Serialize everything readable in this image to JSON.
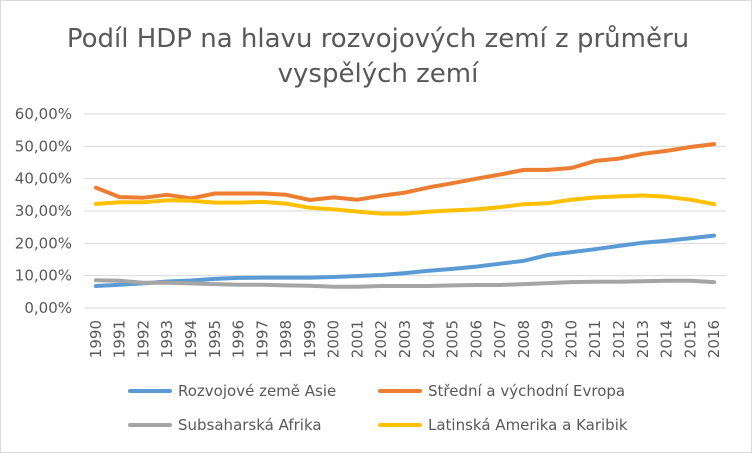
{
  "chart_data": {
    "type": "line",
    "title": "Podíl HDP na hlavu rozvojových zemí z průměru vyspělých zemí",
    "title_lines": [
      "Podíl HDP na hlavu rozvojových zemí z průměru",
      "vyspělých zemí"
    ],
    "xlabel": "",
    "ylabel": "",
    "ylim": [
      0,
      60
    ],
    "y_ticks": [
      0,
      10,
      20,
      30,
      40,
      50,
      60
    ],
    "y_tick_labels": [
      "0,00%",
      "10,00%",
      "20,00%",
      "30,00%",
      "40,00%",
      "50,00%",
      "60,00%"
    ],
    "grid": true,
    "legend_position": "bottom",
    "categories": [
      "1990",
      "1991",
      "1992",
      "1993",
      "1994",
      "1995",
      "1996",
      "1997",
      "1998",
      "1999",
      "2000",
      "2001",
      "2002",
      "2003",
      "2004",
      "2005",
      "2006",
      "2007",
      "2008",
      "2009",
      "2010",
      "2011",
      "2012",
      "2013",
      "2014",
      "2015",
      "2016"
    ],
    "series": [
      {
        "name": "Rozvojové země Asie",
        "color": "#5b9bd5",
        "values": [
          6.8,
          7.2,
          7.6,
          8.2,
          8.5,
          9.0,
          9.3,
          9.4,
          9.4,
          9.4,
          9.6,
          9.9,
          10.2,
          10.8,
          11.5,
          12.1,
          12.8,
          13.7,
          14.6,
          16.4,
          17.3,
          18.2,
          19.2,
          20.2,
          20.8,
          21.6,
          22.4
        ]
      },
      {
        "name": "Střední a východní Evropa",
        "color": "#ed7d31",
        "values": [
          37.2,
          34.3,
          34.1,
          35.0,
          33.9,
          35.4,
          35.4,
          35.4,
          35.0,
          33.4,
          34.2,
          33.5,
          34.7,
          35.7,
          37.3,
          38.6,
          40.0,
          41.3,
          42.7,
          42.7,
          43.3,
          45.5,
          46.2,
          47.7,
          48.6,
          49.8,
          50.7
        ]
      },
      {
        "name": "Subsaharská Afrika",
        "color": "#a5a5a5",
        "values": [
          8.6,
          8.4,
          7.8,
          7.8,
          7.6,
          7.4,
          7.2,
          7.2,
          7.0,
          6.9,
          6.6,
          6.6,
          6.8,
          6.8,
          6.8,
          7.0,
          7.1,
          7.1,
          7.4,
          7.7,
          8.0,
          8.1,
          8.1,
          8.3,
          8.4,
          8.4,
          8.0
        ]
      },
      {
        "name": "Latinská Amerika a Karibik",
        "color": "#ffc000",
        "values": [
          32.2,
          32.7,
          32.7,
          33.3,
          33.2,
          32.6,
          32.6,
          32.8,
          32.3,
          31.0,
          30.5,
          29.8,
          29.2,
          29.2,
          29.8,
          30.2,
          30.5,
          31.2,
          32.1,
          32.4,
          33.5,
          34.2,
          34.5,
          34.8,
          34.4,
          33.5,
          32.1
        ]
      }
    ]
  }
}
